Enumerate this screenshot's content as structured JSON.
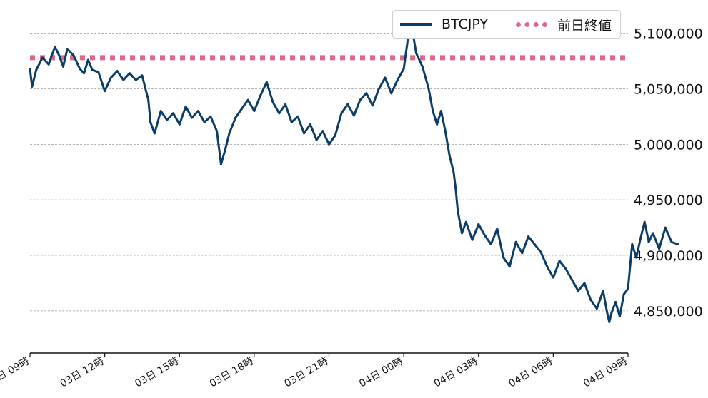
{
  "chart_data": {
    "type": "line",
    "series": [
      {
        "name": "BTCJPY",
        "color": "#0b3d66",
        "points": [
          [
            "03日 09:00",
            5068000
          ],
          [
            "03日 09:05",
            5052000
          ],
          [
            "03日 09:15",
            5067000
          ],
          [
            "03日 09:30",
            5078000
          ],
          [
            "03日 09:45",
            5072000
          ],
          [
            "03日 10:00",
            5088000
          ],
          [
            "03日 10:10",
            5080000
          ],
          [
            "03日 10:20",
            5070000
          ],
          [
            "03日 10:30",
            5086000
          ],
          [
            "03日 10:45",
            5080000
          ],
          [
            "03日 11:00",
            5068000
          ],
          [
            "03日 11:10",
            5064000
          ],
          [
            "03日 11:20",
            5076000
          ],
          [
            "03日 11:30",
            5067000
          ],
          [
            "03日 11:45",
            5065000
          ],
          [
            "03日 12:00",
            5048000
          ],
          [
            "03日 12:15",
            5060000
          ],
          [
            "03日 12:30",
            5066000
          ],
          [
            "03日 12:45",
            5058000
          ],
          [
            "03日 13:00",
            5064000
          ],
          [
            "03日 13:15",
            5058000
          ],
          [
            "03日 13:30",
            5062000
          ],
          [
            "03day13:45",
            5040000
          ],
          [
            "03日 13:50",
            5020000
          ],
          [
            "03日 14:00",
            5010000
          ],
          [
            "03日 14:15",
            5030000
          ],
          [
            "03日 14:30",
            5022000
          ],
          [
            "03日 14:45",
            5028000
          ],
          [
            "03日 15:00",
            5018000
          ],
          [
            "03日 15:15",
            5034000
          ],
          [
            "03日 15:30",
            5024000
          ],
          [
            "03日 15:45",
            5030000
          ],
          [
            "03日 16:00",
            5020000
          ],
          [
            "03日 16:15",
            5025000
          ],
          [
            "03日 16:30",
            5012000
          ],
          [
            "03日 16:40",
            4982000
          ],
          [
            "03日 16:50",
            4995000
          ],
          [
            "03日 17:00",
            5010000
          ],
          [
            "03日 17:15",
            5024000
          ],
          [
            "03日 17:30",
            5032000
          ],
          [
            "03日 17:45",
            5040000
          ],
          [
            "03日 18:00",
            5030000
          ],
          [
            "03日 18:15",
            5044000
          ],
          [
            "03日 18:30",
            5056000
          ],
          [
            "03日 18:45",
            5038000
          ],
          [
            "03日 19:00",
            5028000
          ],
          [
            "03日 19:15",
            5036000
          ],
          [
            "03日 19:30",
            5020000
          ],
          [
            "03日 19:45",
            5025000
          ],
          [
            "03日 20:00",
            5010000
          ],
          [
            "03日 20:15",
            5018000
          ],
          [
            "03日 20:30",
            5004000
          ],
          [
            "03日 20:45",
            5012000
          ],
          [
            "03日 21:00",
            5000000
          ],
          [
            "03日 21:15",
            5008000
          ],
          [
            "03日 21:30",
            5028000
          ],
          [
            "03日 21:45",
            5036000
          ],
          [
            "03日 22:00",
            5026000
          ],
          [
            "03日 22:15",
            5040000
          ],
          [
            "03日 22:30",
            5046000
          ],
          [
            "03日 22:45",
            5035000
          ],
          [
            "03日 23:00",
            5050000
          ],
          [
            "03日 23:15",
            5060000
          ],
          [
            "03日 23:30",
            5046000
          ],
          [
            "03日 23:45",
            5058000
          ],
          [
            "04日 00:00",
            5068000
          ],
          [
            "04日 00:10",
            5095000
          ],
          [
            "04日 00:20",
            5104000
          ],
          [
            "04日 00:30",
            5082000
          ],
          [
            "04日 00:45",
            5070000
          ],
          [
            "04日 01:00",
            5050000
          ],
          [
            "04日 01:10",
            5030000
          ],
          [
            "04日 01:20",
            5018000
          ],
          [
            "04日 01:30",
            5030000
          ],
          [
            "04日 01:40",
            5012000
          ],
          [
            "04日 01:50",
            4990000
          ],
          [
            "04日 02:00",
            4975000
          ],
          [
            "04日 02:05",
            4960000
          ],
          [
            "04日 02:10",
            4940000
          ],
          [
            "04日 02:20",
            4920000
          ],
          [
            "04日 02:30",
            4930000
          ],
          [
            "04日 02:45",
            4914000
          ],
          [
            "04日 03:00",
            4928000
          ],
          [
            "04日 03:15",
            4918000
          ],
          [
            "04日 03:30",
            4910000
          ],
          [
            "04日 03:45",
            4924000
          ],
          [
            "04日 04:00",
            4898000
          ],
          [
            "04日 04:15",
            4890000
          ],
          [
            "04日 04:30",
            4912000
          ],
          [
            "04日 04:45",
            4902000
          ],
          [
            "04日 05:00",
            4917000
          ],
          [
            "04日 05:15",
            4910000
          ],
          [
            "04日 05:30",
            4903000
          ],
          [
            "04日 05:45",
            4890000
          ],
          [
            "04日 06:00",
            4880000
          ],
          [
            "04日 06:15",
            4895000
          ],
          [
            "04日 06:30",
            4888000
          ],
          [
            "04日 06:45",
            4878000
          ],
          [
            "04日 07:00",
            4868000
          ],
          [
            "04日 07:15",
            4875000
          ],
          [
            "04日 07:30",
            4860000
          ],
          [
            "04日 07:45",
            4852000
          ],
          [
            "04日 08:00",
            4868000
          ],
          [
            "04日 08:10",
            4848000
          ],
          [
            "04日 08:15",
            4840000
          ],
          [
            "04日 08:20",
            4848000
          ],
          [
            "04日 08:30",
            4858000
          ],
          [
            "04日 08:40",
            4845000
          ],
          [
            "04日 08:50",
            4865000
          ],
          [
            "04日 09:00",
            4870000
          ],
          [
            "04日 09:10",
            4910000
          ],
          [
            "04日 09:20",
            4898000
          ],
          [
            "04日 09:30",
            4915000
          ],
          [
            "04日 09:40",
            4930000
          ],
          [
            "04日 09:50",
            4912000
          ],
          [
            "04日 10:00",
            4920000
          ],
          [
            "04日 10:15",
            4906000
          ],
          [
            "04日 10:30",
            4925000
          ],
          [
            "04日 10:45",
            4912000
          ],
          [
            "04日 11:00",
            4910000
          ]
        ]
      },
      {
        "name": "前日終値",
        "color": "#d96a8a",
        "style": "dotted",
        "value": 5078000
      }
    ],
    "x_ticks": [
      "03日 09時",
      "03日 12時",
      "03日 15時",
      "03日 18時",
      "03日 21時",
      "04日 00時",
      "04日 03時",
      "04日 06時",
      "04日 09時"
    ],
    "y_ticks": [
      "4,850,000",
      "4,900,000",
      "4,950,000",
      "5,000,000",
      "5,050,000",
      "5,100,000"
    ],
    "ylim": [
      4812000,
      5112000
    ],
    "grid": "horizontal dashed",
    "legend_placement": "top-right",
    "y_axis_side": "right"
  },
  "legend": {
    "items": [
      {
        "label": "BTCJPY",
        "style": "solid",
        "color": "#0b3d66"
      },
      {
        "label": "前日終値",
        "style": "dotted",
        "color": "#d96a8a"
      }
    ]
  }
}
